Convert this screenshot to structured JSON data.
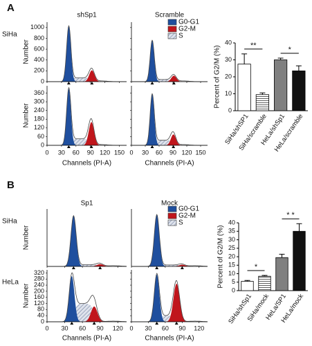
{
  "chart_data": [
    {
      "type": "flow-histogram-grid",
      "panel_label": "A",
      "columns": [
        "shSp1",
        "Scramble"
      ],
      "rows": [
        "SiHa",
        null
      ],
      "y_label": "Number",
      "x_label": "Channels (PI-A)",
      "legend": [
        {
          "name": "G0-G1",
          "color": "#1f4f9e"
        },
        {
          "name": "G2-M",
          "color": "#c0161c"
        },
        {
          "name": "S",
          "color": "#6f7fa0"
        }
      ],
      "xlim": [
        0,
        165
      ],
      "xticks": [
        0,
        30,
        60,
        90,
        120,
        150
      ],
      "row_ylim": [
        [
          0,
          1100
        ],
        [
          0,
          410
        ]
      ],
      "row_yticks": [
        [
          0,
          200,
          400,
          600,
          800,
          1000
        ],
        [
          0,
          60,
          120,
          180,
          240,
          300,
          360
        ]
      ],
      "histograms": [
        [
          {
            "g0g1": [
              45,
              1020
            ],
            "g2m": [
              93,
              210
            ],
            "s": 70
          },
          {
            "g0g1": [
              45,
              760
            ],
            "g2m": [
              92,
              110
            ],
            "s": 40
          }
        ],
        [
          {
            "g0g1": [
              45,
              390
            ],
            "g2m": [
              92,
              160
            ],
            "s": 45
          },
          {
            "g0g1": [
              45,
              350
            ],
            "g2m": [
              91,
              75
            ],
            "s": 35
          }
        ]
      ]
    },
    {
      "type": "bar",
      "y_label": "Percent of G2/M (%)",
      "categories": [
        "SiHa/shSP1",
        "SiHa/scramble",
        "HeLa/shSp1",
        "HeLa/scramble"
      ],
      "values": [
        27.5,
        9.5,
        30,
        23.5
      ],
      "errors": [
        6,
        1,
        1,
        3
      ],
      "colors": [
        "#ffffff",
        "#ffffff",
        "#808080",
        "#111111"
      ],
      "hatched": [
        false,
        true,
        false,
        false
      ],
      "ylim": [
        0,
        40
      ],
      "yticks": [
        0,
        10,
        20,
        30,
        40
      ],
      "significance": [
        {
          "pair": [
            0,
            1
          ],
          "label": "**"
        },
        {
          "pair": [
            2,
            3
          ],
          "label": "*"
        }
      ]
    },
    {
      "type": "flow-histogram-grid",
      "panel_label": "B",
      "columns": [
        "Sp1",
        "Mock"
      ],
      "rows": [
        "SiHa",
        "HeLa"
      ],
      "y_label": "Number",
      "x_label": "Channels (PI-A)",
      "legend": [
        {
          "name": "G0-G1",
          "color": "#1f4f9e"
        },
        {
          "name": "G2-M",
          "color": "#c0161c"
        },
        {
          "name": "S",
          "color": "#6f7fa0"
        }
      ],
      "xlim": [
        0,
        135
      ],
      "xticks": [
        0,
        30,
        60,
        90,
        120
      ],
      "row_ylim": [
        [
          0,
          1000
        ],
        [
          0,
          340
        ]
      ],
      "row_yticks": [
        [],
        [
          0,
          40,
          80,
          120,
          160,
          200,
          240,
          280,
          320
        ]
      ],
      "histograms": [
        [
          {
            "g0g1": [
              45,
              880
            ],
            "g2m": [
              90,
              40
            ],
            "s": 30
          },
          {
            "g0g1": [
              45,
              900
            ],
            "g2m": [
              90,
              30
            ],
            "s": 25
          }
        ],
        [
          {
            "g0g1": [
              42,
              300
            ],
            "g2m": [
              80,
              100
            ],
            "s": 120
          },
          {
            "g0g1": [
              45,
              310
            ],
            "g2m": [
              80,
              250
            ],
            "s": 40
          }
        ]
      ]
    },
    {
      "type": "bar",
      "y_label": "Percent of G2/M (%)",
      "categories": [
        "SiHa/shSp1",
        "SiHa/mock",
        "HeLa/SP1",
        "HeLa/mock"
      ],
      "values": [
        5.5,
        8.5,
        19.5,
        35
      ],
      "errors": [
        0.5,
        0.5,
        2,
        4.5
      ],
      "colors": [
        "#ffffff",
        "#ffffff",
        "#808080",
        "#111111"
      ],
      "hatched": [
        false,
        true,
        false,
        false
      ],
      "ylim": [
        0,
        40
      ],
      "yticks": [
        0,
        5,
        10,
        15,
        20,
        25,
        30,
        35,
        40
      ],
      "significance": [
        {
          "pair": [
            0,
            1
          ],
          "label": "*"
        },
        {
          "pair": [
            2,
            3
          ],
          "label": "* *"
        }
      ]
    }
  ]
}
